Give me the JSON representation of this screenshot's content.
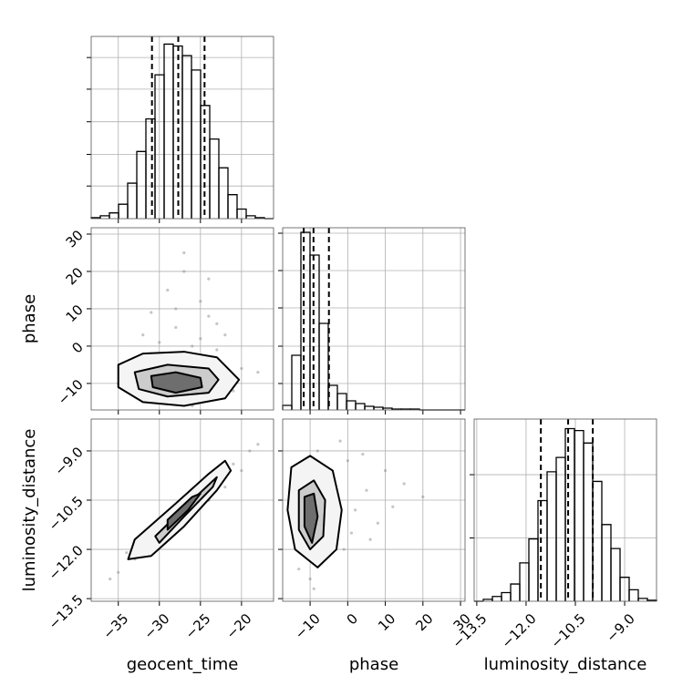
{
  "chart_data": [
    {
      "type": "histogram",
      "color": "#000000",
      "grid": true,
      "xlim": [
        -38.3,
        -16.1
      ],
      "ylim": [
        0,
        190
      ],
      "xticks": [
        -35,
        -30,
        -25,
        -20
      ],
      "yticks": [
        34,
        67,
        101,
        135,
        168
      ],
      "show_xticklabels": false,
      "show_yticklabels": false,
      "bins": [
        -38.3,
        -37.19,
        -36.08,
        -34.97,
        -33.86,
        -32.75,
        -31.64,
        -30.53,
        -29.42,
        -28.31,
        -27.2,
        -26.09,
        -24.98,
        -23.87,
        -22.76,
        -21.65,
        -20.54,
        -19.43,
        -18.32,
        -17.21,
        -16.1
      ],
      "counts": [
        1,
        3,
        6,
        15,
        37,
        70,
        104,
        150,
        182,
        180,
        170,
        155,
        118,
        83,
        53,
        25,
        10,
        3,
        1,
        0
      ],
      "quantiles": [
        -30.9,
        -27.7,
        -24.5
      ]
    },
    {
      "type": "scatter",
      "grid": true,
      "point_color": "#8c8c8c",
      "xlim": [
        -38.3,
        -16.1
      ],
      "ylim": [
        -17.1,
        31.7
      ],
      "xticks": [
        -35,
        -30,
        -25,
        -20
      ],
      "yticks": [
        {
          "value": -10,
          "label": "−10"
        },
        0,
        10,
        20,
        30
      ],
      "show_xticklabels": false,
      "show_yticklabels": true,
      "ylabel": "phase",
      "x": [
        -28,
        -25,
        -31,
        -22,
        -27,
        -33,
        -26,
        -24,
        -30,
        -20,
        -29,
        -23,
        -35,
        -27,
        -25,
        -32,
        -21,
        -28,
        -26,
        -24,
        -30,
        -18,
        -29,
        -27,
        -34,
        -23,
        -26,
        -31,
        -25,
        -28
      ],
      "y": [
        5,
        12,
        -2,
        3,
        20,
        -8,
        0,
        8,
        -4,
        -6,
        15,
        -1,
        -10,
        -14,
        2,
        3,
        -12,
        10,
        -16,
        18,
        1,
        -7,
        -3,
        25,
        -5,
        6,
        -13,
        9,
        -15,
        -2
      ],
      "contours": [
        {
          "color": "#f4f4f4",
          "x": [
            -35,
            -32,
            -27,
            -23,
            -20.3,
            -22,
            -27,
            -32,
            -35
          ],
          "y": [
            -5,
            -2,
            -1.5,
            -3,
            -9,
            -14,
            -16,
            -15,
            -11
          ]
        },
        {
          "color": "#cccccc",
          "x": [
            -33,
            -29,
            -24,
            -22.8,
            -24,
            -29,
            -32.5
          ],
          "y": [
            -7,
            -5,
            -6,
            -9,
            -12.5,
            -13.5,
            -11.5
          ]
        },
        {
          "color": "#6e6e6e",
          "x": [
            -31,
            -28,
            -25,
            -24.8,
            -28,
            -30.8
          ],
          "y": [
            -8,
            -7,
            -8.5,
            -11,
            -12.5,
            -11
          ]
        }
      ]
    },
    {
      "type": "histogram",
      "color": "#000000",
      "grid": true,
      "xlim": [
        -17.3,
        31.2
      ],
      "ylim": [
        0,
        200
      ],
      "xticks": [
        -10,
        0,
        10,
        20,
        30
      ],
      "yticks": [
        29,
        70,
        112,
        153,
        194
      ],
      "show_xticklabels": false,
      "show_yticklabels": false,
      "bins": [
        -17.3,
        -14.875,
        -12.45,
        -10.025,
        -7.6,
        -5.175,
        -2.75,
        -0.325,
        2.1,
        4.525,
        6.95,
        9.375,
        11.8,
        14.225,
        16.65,
        19.075,
        21.5,
        23.925,
        26.35,
        28.775,
        31.2
      ],
      "counts": [
        5,
        60,
        195,
        170,
        95,
        27,
        18,
        10,
        7,
        4,
        3,
        2,
        1,
        1,
        1,
        0,
        0,
        0,
        0,
        0
      ],
      "quantiles": [
        -11.7,
        -9.1,
        -5.0
      ]
    },
    {
      "type": "scatter",
      "grid": true,
      "point_color": "#8c8c8c",
      "xlim": [
        -38.3,
        -16.1
      ],
      "ylim": [
        -13.58,
        -8.03
      ],
      "xticks": [
        {
          "value": -35,
          "label": "−35"
        },
        {
          "value": -30,
          "label": "−30"
        },
        {
          "value": -25,
          "label": "−25"
        },
        {
          "value": -20,
          "label": "−20"
        }
      ],
      "yticks": [
        {
          "value": -13.5,
          "label": "−13.5"
        },
        {
          "value": -12,
          "label": "−12.0"
        },
        {
          "value": -10.5,
          "label": "−10.5"
        },
        {
          "value": -9,
          "label": "−9.0"
        }
      ],
      "show_xticklabels": true,
      "show_yticklabels": true,
      "xlabel": "geocent_time",
      "ylabel": "luminosity_distance",
      "x": [
        -36,
        -34,
        -33,
        -31,
        -30,
        -29,
        -28,
        -27,
        -26,
        -25,
        -24,
        -23,
        -22,
        -21,
        -20,
        -19,
        -18,
        -32,
        -28,
        -26,
        -24,
        -22,
        -35,
        -30,
        -25
      ],
      "y": [
        -12.9,
        -12.1,
        -12.3,
        -11.5,
        -11.7,
        -11.0,
        -11.3,
        -10.6,
        -10.9,
        -10.2,
        -10.5,
        -9.8,
        -10.1,
        -9.4,
        -9.6,
        -9.0,
        -8.8,
        -11.7,
        -10.8,
        -10.4,
        -10.5,
        -9.6,
        -12.7,
        -11.2,
        -10.7
      ],
      "contours": [
        {
          "color": "#f4f4f4",
          "x": [
            -33.8,
            -33,
            -28,
            -24,
            -22,
            -21.3,
            -23,
            -27,
            -31
          ],
          "y": [
            -12.3,
            -11.7,
            -10.6,
            -9.7,
            -9.3,
            -9.6,
            -10.2,
            -11.3,
            -12.2
          ]
        },
        {
          "color": "#cccccc",
          "x": [
            -30.5,
            -26,
            -23,
            -23.5,
            -27,
            -30
          ],
          "y": [
            -11.6,
            -10.5,
            -9.8,
            -10.1,
            -11,
            -11.8
          ]
        },
        {
          "color": "#6e6e6e",
          "x": [
            -29,
            -26,
            -25,
            -26.5,
            -29
          ],
          "y": [
            -11.1,
            -10.4,
            -10.3,
            -10.8,
            -11.4
          ]
        }
      ]
    },
    {
      "type": "scatter",
      "grid": true,
      "point_color": "#8c8c8c",
      "xlim": [
        -17.3,
        31.2
      ],
      "ylim": [
        -13.58,
        -8.03
      ],
      "xticks": [
        {
          "value": -10,
          "label": "−10"
        },
        0,
        10,
        20,
        30
      ],
      "yticks": [
        -13.5,
        -12,
        -10.5,
        -9
      ],
      "show_xticklabels": true,
      "show_yticklabels": false,
      "xlabel": "phase",
      "x": [
        -12,
        -8,
        -5,
        0,
        5,
        10,
        -14,
        -10,
        -3,
        2,
        8,
        15,
        -6,
        -11,
        4,
        -1,
        12,
        -9,
        -4,
        20,
        -13,
        6,
        -7,
        1,
        -2
      ],
      "y": [
        -9.5,
        -9.0,
        -9.8,
        -9.3,
        -10.2,
        -9.6,
        -11.8,
        -12.9,
        -11.4,
        -10.8,
        -11.2,
        -10.0,
        -12.3,
        -10.6,
        -9.1,
        -12.0,
        -10.7,
        -13.2,
        -10.1,
        -10.4,
        -12.6,
        -11.7,
        -9.4,
        -11.5,
        -8.7
      ],
      "contours": [
        {
          "color": "#f4f4f4",
          "x": [
            -15,
            -10,
            -4,
            -1.6,
            -3,
            -8,
            -14,
            -16
          ],
          "y": [
            -9.5,
            -9.15,
            -9.6,
            -10.8,
            -12,
            -12.55,
            -12,
            -10.8
          ]
        },
        {
          "color": "#cccccc",
          "x": [
            -13,
            -9,
            -6,
            -6.5,
            -10,
            -13
          ],
          "y": [
            -10.2,
            -9.9,
            -10.5,
            -11.6,
            -12,
            -11.4
          ]
        },
        {
          "color": "#6e6e6e",
          "x": [
            -11.5,
            -9,
            -8,
            -9.5,
            -11.5
          ],
          "y": [
            -10.4,
            -10.3,
            -11,
            -11.8,
            -11.3
          ]
        }
      ]
    },
    {
      "type": "histogram",
      "color": "#000000",
      "grid": true,
      "xlim": [
        -13.58,
        -8.03
      ],
      "ylim": [
        0,
        190
      ],
      "xticks": [
        {
          "value": -13.5,
          "label": "−13.5"
        },
        {
          "value": -12,
          "label": "−12.0"
        },
        {
          "value": -10.5,
          "label": "−10.5"
        },
        {
          "value": -9,
          "label": "−9.0"
        }
      ],
      "yticks": [
        66,
        132
      ],
      "show_xticklabels": true,
      "show_yticklabels": false,
      "xlabel": "luminosity_distance",
      "bins": [
        -13.58,
        -13.3025,
        -13.025,
        -12.7475,
        -12.47,
        -12.1925,
        -11.915,
        -11.6375,
        -11.36,
        -11.0825,
        -10.805,
        -10.5275,
        -10.25,
        -9.9725,
        -9.695,
        -9.4175,
        -9.14,
        -8.8625,
        -8.585,
        -8.3075,
        -8.03
      ],
      "counts": [
        0,
        2,
        5,
        9,
        18,
        40,
        65,
        105,
        135,
        150,
        180,
        178,
        165,
        125,
        80,
        55,
        25,
        12,
        3,
        1
      ],
      "quantiles": [
        -11.55,
        -10.72,
        -9.97
      ]
    }
  ]
}
